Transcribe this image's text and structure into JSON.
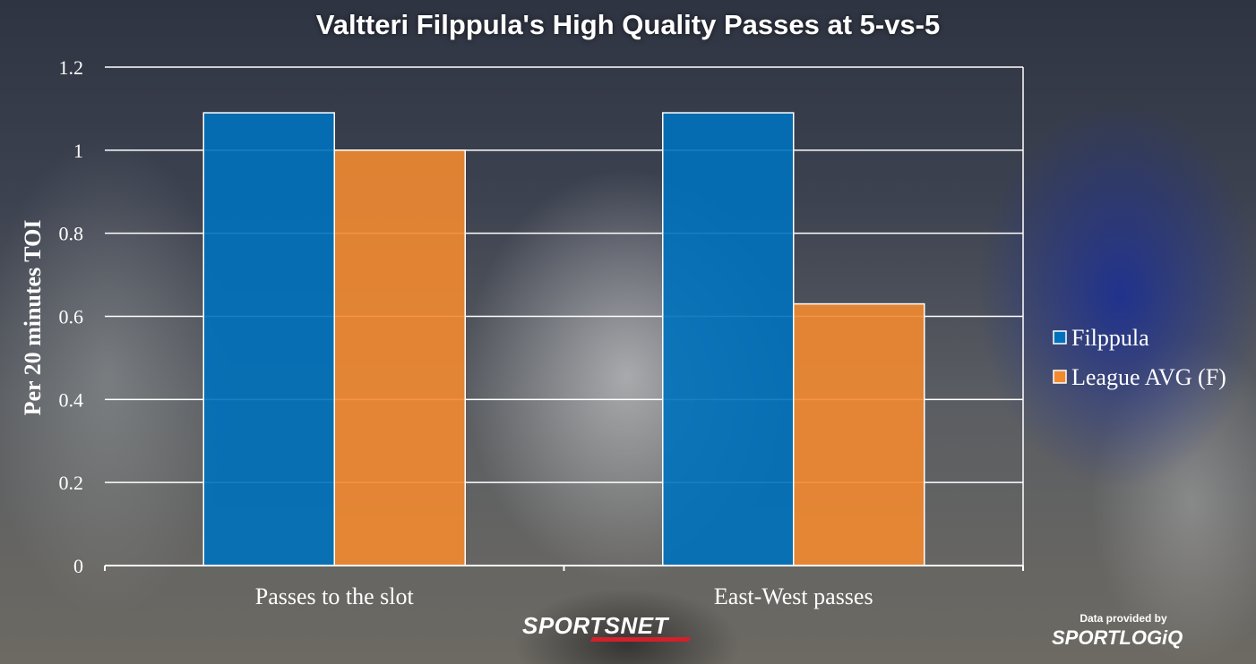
{
  "chart_data": {
    "type": "bar",
    "title": "Valtteri Filppula's High Quality Passes at 5-vs-5",
    "ylabel": "Per 20 minutes TOI",
    "xlabel": "",
    "ylim": [
      0,
      1.2
    ],
    "yticks": [
      "0",
      "0.2",
      "0.4",
      "0.6",
      "0.8",
      "1",
      "1.2"
    ],
    "categories": [
      "Passes to the slot",
      "East-West passes"
    ],
    "series": [
      {
        "name": "Filppula",
        "values": [
          1.09,
          1.09
        ],
        "color": "#0071bc"
      },
      {
        "name": "League AVG (F)",
        "values": [
          1.0,
          0.63
        ],
        "color": "#f28a30"
      }
    ],
    "grid": true,
    "legend_position": "right"
  },
  "branding": {
    "logo": "SPORTSNET",
    "credit_prefix": "Data provided by",
    "credit_brand": "SPORTLOGiQ"
  }
}
